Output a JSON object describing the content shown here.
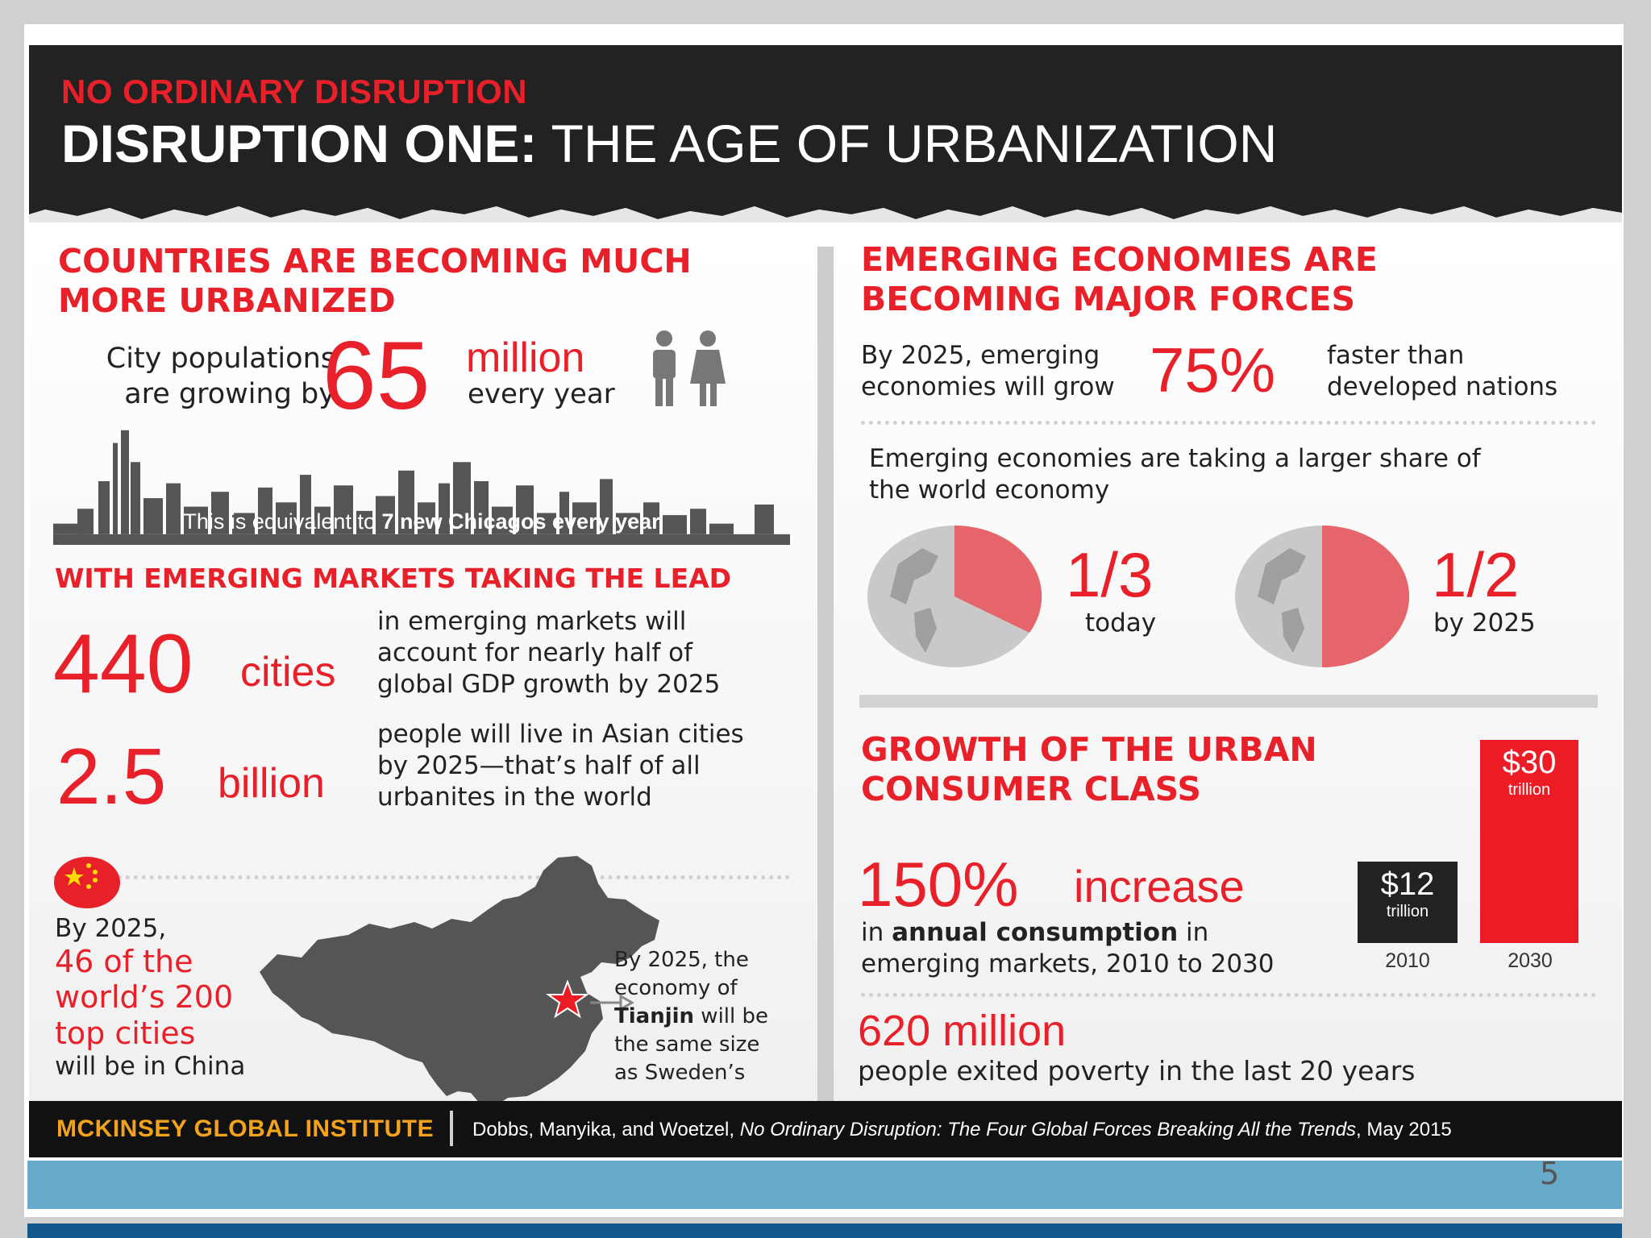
{
  "header": {
    "kicker": "NO ORDINARY DISRUPTION",
    "title_bold": "DISRUPTION ONE:",
    "title_rest": " THE AGE OF URBANIZATION"
  },
  "left": {
    "heading1_line1": "COUNTRIES ARE BECOMING MUCH",
    "heading1_line2": "MORE URBANIZED",
    "city_pop_line1": "City populations",
    "city_pop_line2": "are growing by",
    "city_pop_number": "65",
    "city_pop_unit": "million",
    "city_pop_suffix": "every year",
    "skyline_caption_plain": "This is equivalent to ",
    "skyline_caption_bold": "7 new Chicagos every year",
    "heading2": "WITH EMERGING MARKETS TAKING THE LEAD",
    "cities_number": "440",
    "cities_unit": "cities",
    "cities_text_line1": "in emerging markets will",
    "cities_text_line2": "account for nearly half of",
    "cities_text_line3": "global GDP growth by 2025",
    "billion_number": "2.5",
    "billion_unit": "billion",
    "billion_text_line1": "people will live in Asian cities",
    "billion_text_line2": "by 2025—that’s half of all",
    "billion_text_line3": "urbanites in the world",
    "china_line1": "By 2025,",
    "china_red1": "46 of the",
    "china_red2": "world’s 200",
    "china_red3": "top cities",
    "china_line5": "will be in China",
    "tianjin_line1": "By 2025, the",
    "tianjin_line2": "economy of",
    "tianjin_bold": "Tianjin",
    "tianjin_line3_rest": " will be",
    "tianjin_line4": "the same size",
    "tianjin_line5": "as Sweden’s"
  },
  "right": {
    "heading1_line1": "EMERGING ECONOMIES ARE",
    "heading1_line2": "BECOMING MAJOR FORCES",
    "grow_line1": "By 2025, emerging",
    "grow_line2": "economies will grow",
    "grow_number": "75%",
    "grow_after_line1": "faster than",
    "grow_after_line2": "developed nations",
    "share_line1": "Emerging economies are taking a larger share of",
    "share_line2": "the world economy",
    "pie1_fraction": "1/3",
    "pie1_label": "today",
    "pie2_fraction": "1/2",
    "pie2_label": "by 2025",
    "heading2_line1": "GROWTH OF THE URBAN",
    "heading2_line2": "CONSUMER CLASS",
    "increase_number": "150%",
    "increase_word": "increase",
    "consumption_pre": "in ",
    "consumption_bold": "annual consumption",
    "consumption_post": " in",
    "consumption_line2": "emerging markets, 2010 to 2030",
    "poverty_number": "620 million",
    "poverty_text": "people exited poverty in the last 20 years"
  },
  "chart_data": {
    "type": "bar",
    "categories": [
      "2010",
      "2030"
    ],
    "values": [
      12,
      30
    ],
    "value_labels": [
      "$12",
      "$30"
    ],
    "unit": "trillion"
  },
  "pies": [
    {
      "fraction": 0.333,
      "label": "1/3"
    },
    {
      "fraction": 0.5,
      "label": "1/2"
    }
  ],
  "footer": {
    "org": "MCKINSEY GLOBAL INSTITUTE",
    "cite_plain": "Dobbs, Manyika, and Woetzel, ",
    "cite_italic": "No Ordinary Disruption: The Four Global Forces Breaking All the Trends",
    "cite_end": ", May 2015"
  },
  "slide": {
    "page_number": "5"
  },
  "colors": {
    "accent_red": "#e8202a",
    "header_black": "#222222",
    "footer_orange": "#f2a31b",
    "teal": "#67a9c9",
    "navy": "#12578c"
  }
}
